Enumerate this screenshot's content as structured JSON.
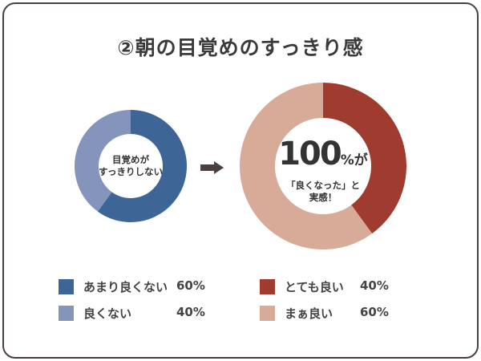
{
  "title": "②朝の目覚めのすっきり感",
  "colors": {
    "dark_blue": "#3d6595",
    "light_blue": "#8494bb",
    "dark_red": "#a03c2f",
    "light_pink": "#d7ab97",
    "arrow": "#4a4040"
  },
  "chart_data": [
    {
      "type": "pie",
      "subtype": "donut",
      "center_label_lines": [
        "目覚めが",
        "すっきりしない"
      ],
      "slices": [
        {
          "label": "あまり良くない",
          "value": 60,
          "display": "60%",
          "color": "#3d6595"
        },
        {
          "label": "良くない",
          "value": 40,
          "display": "40%",
          "color": "#8494bb"
        }
      ]
    },
    {
      "type": "pie",
      "subtype": "donut",
      "center_big": "100",
      "center_big_suffix": "%が",
      "center_label_lines": [
        "「良くなった」と",
        "実感！"
      ],
      "slices": [
        {
          "label": "とても良い",
          "value": 40,
          "display": "40%",
          "color": "#a03c2f"
        },
        {
          "label": "まぁ良い",
          "value": 60,
          "display": "60%",
          "color": "#d7ab97"
        }
      ]
    }
  ],
  "arrow_icon": "right-arrow-icon"
}
